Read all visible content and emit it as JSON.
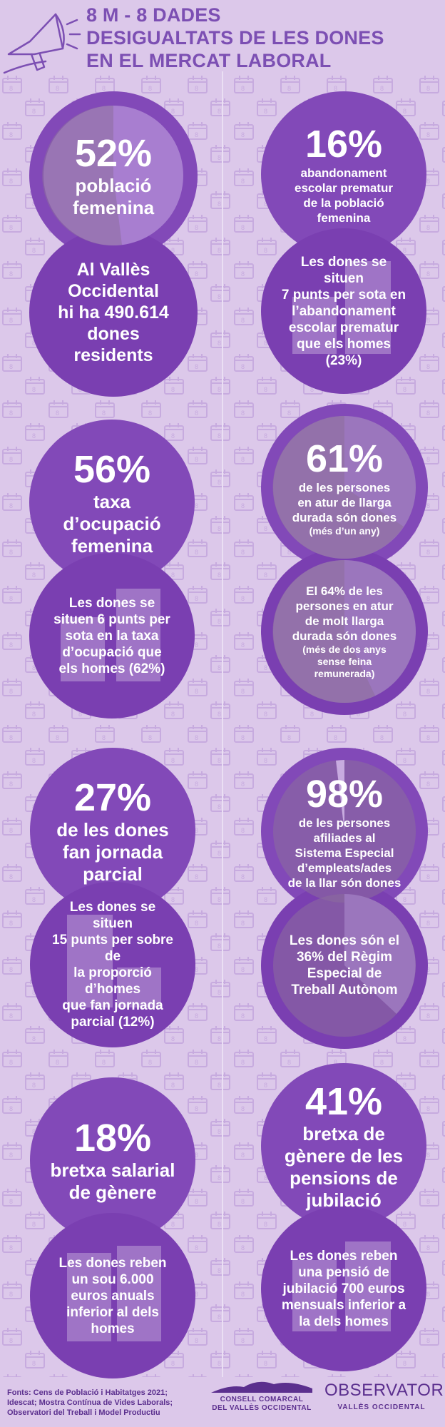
{
  "header": {
    "title_lines": [
      "8 M - 8 DADES",
      "DESIGUALTATS DE LES DONES",
      "EN EL MERCAT LABORAL"
    ]
  },
  "colors": {
    "background": "#dcc8ea",
    "circle": "#8249b8",
    "circle_dark": "#7a3fb1",
    "title": "#7c4fb3",
    "footer": "#5b2f8e"
  },
  "stats": [
    {
      "percent": "52%",
      "label_lines": [
        "població",
        "femenina"
      ],
      "detail_lines": [
        "Al Vallès",
        "Occidental",
        "hi ha 490.614",
        "dones",
        "residents"
      ]
    },
    {
      "percent": "16%",
      "label_lines": [
        "abandonament",
        "escolar prematur",
        "de la població",
        "femenina"
      ],
      "detail_lines": [
        "Les dones se situen",
        "7 punts per sota en",
        "l’abandonament",
        "escolar prematur",
        "que els homes (23%)"
      ]
    },
    {
      "percent": "56%",
      "label_lines": [
        "taxa",
        "d’ocupació",
        "femenina"
      ],
      "detail_lines": [
        "Les dones se",
        "situen 6 punts per",
        "sota en la taxa",
        "d’ocupació que",
        "els homes (62%)"
      ]
    },
    {
      "percent": "61%",
      "label_lines": [
        "de les persones",
        "en atur de llarga",
        "durada són dones"
      ],
      "label_note": "(més d’un any)",
      "detail_lines": [
        "El 64% de les",
        "persones en atur",
        "de molt llarga",
        "durada són dones"
      ],
      "detail_note_lines": [
        "(més de dos anys",
        "sense feina",
        "remunerada)"
      ]
    },
    {
      "percent": "27%",
      "label_lines": [
        "de les dones",
        "fan jornada",
        "parcial"
      ],
      "detail_lines": [
        "Les dones se situen",
        "15 punts per sobre de",
        "la proporció d’homes",
        "que fan jornada",
        "parcial (12%)"
      ]
    },
    {
      "percent": "98%",
      "label_lines": [
        "de les persones",
        "afiliades al",
        "Sistema Especial",
        "d’empleats/ades",
        "de la llar són dones"
      ],
      "detail_lines": [
        "Les dones són el",
        "36% del Règim",
        "Especial de",
        "Treball Autònom"
      ]
    },
    {
      "percent": "18%",
      "label_lines": [
        "bretxa salarial",
        "de gènere"
      ],
      "detail_lines": [
        "Les dones reben",
        "un sou 6.000",
        "euros anuals",
        "inferior al dels",
        "homes"
      ]
    },
    {
      "percent": "41%",
      "label_lines": [
        "bretxa de",
        "gènere de les",
        "pensions de",
        "jubilació"
      ],
      "detail_lines": [
        "Les dones reben",
        "una pensió de",
        "jubilació 700 euros",
        "mensuals inferior a",
        "la dels homes"
      ]
    }
  ],
  "footer": {
    "sources_lines": [
      "Fonts: Cens de Població i Habitatges 2021;",
      "Idescat; Mostra Contínua de Vides Laborals;",
      "Observatori del Treball i Model Productiu"
    ],
    "logo1_lines": [
      "CONSELL COMARCAL",
      "DEL VALLÈS OCCIDENTAL"
    ],
    "logo2_lines": [
      "OBSERVATORI",
      "VALLÈS OCCIDENTAL"
    ]
  }
}
